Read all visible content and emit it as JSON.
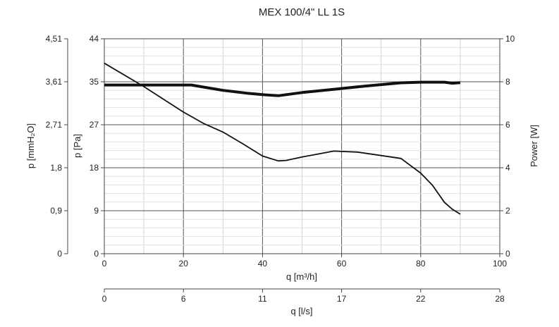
{
  "chart_data": {
    "type": "line",
    "title": "MEX 100/4\" LL 1S",
    "xlabel": "q [m³/h]",
    "x2label": "q [l/s]",
    "ylabel_left_outer": "p [mmH₂O]",
    "ylabel_left_inner": "p [Pa]",
    "ylabel_right": "Power [W]",
    "xlim": [
      0,
      100
    ],
    "ylim": [
      0,
      44
    ],
    "y_right_lim": [
      0,
      10
    ],
    "x_ticks": [
      "0",
      "20",
      "40",
      "60",
      "80",
      "100"
    ],
    "x2_ticks": [
      "0",
      "6",
      "11",
      "17",
      "22",
      "28"
    ],
    "y_pa_ticks": [
      "0",
      "9",
      "18",
      "27",
      "35",
      "44"
    ],
    "y_mmh2o_ticks": [
      "0",
      "0,9",
      "1,8",
      "2,71",
      "3,61",
      "4,51"
    ],
    "y_right_ticks": [
      "0",
      "2",
      "4",
      "6",
      "8",
      "10"
    ],
    "grid": true,
    "series": [
      {
        "role": "pressure",
        "axis": "left",
        "x": [
          0,
          10,
          20,
          25,
          30,
          35,
          40,
          44,
          46,
          50,
          54,
          58,
          64,
          70,
          75,
          80,
          83,
          86,
          88,
          90
        ],
        "y": [
          39,
          34.2,
          29,
          26.7,
          24.9,
          22.5,
          20,
          19,
          19.1,
          19.8,
          20.4,
          21,
          20.8,
          20.1,
          19.5,
          16.5,
          14,
          10.5,
          9.1,
          8.1
        ]
      },
      {
        "role": "power",
        "axis": "right",
        "x": [
          0,
          10,
          22,
          30,
          36,
          40,
          44,
          50,
          58,
          66,
          75,
          80,
          86,
          88,
          90
        ],
        "y": [
          7.85,
          7.85,
          7.85,
          7.6,
          7.47,
          7.4,
          7.35,
          7.5,
          7.65,
          7.8,
          7.95,
          7.98,
          7.98,
          7.93,
          7.96
        ]
      }
    ]
  }
}
